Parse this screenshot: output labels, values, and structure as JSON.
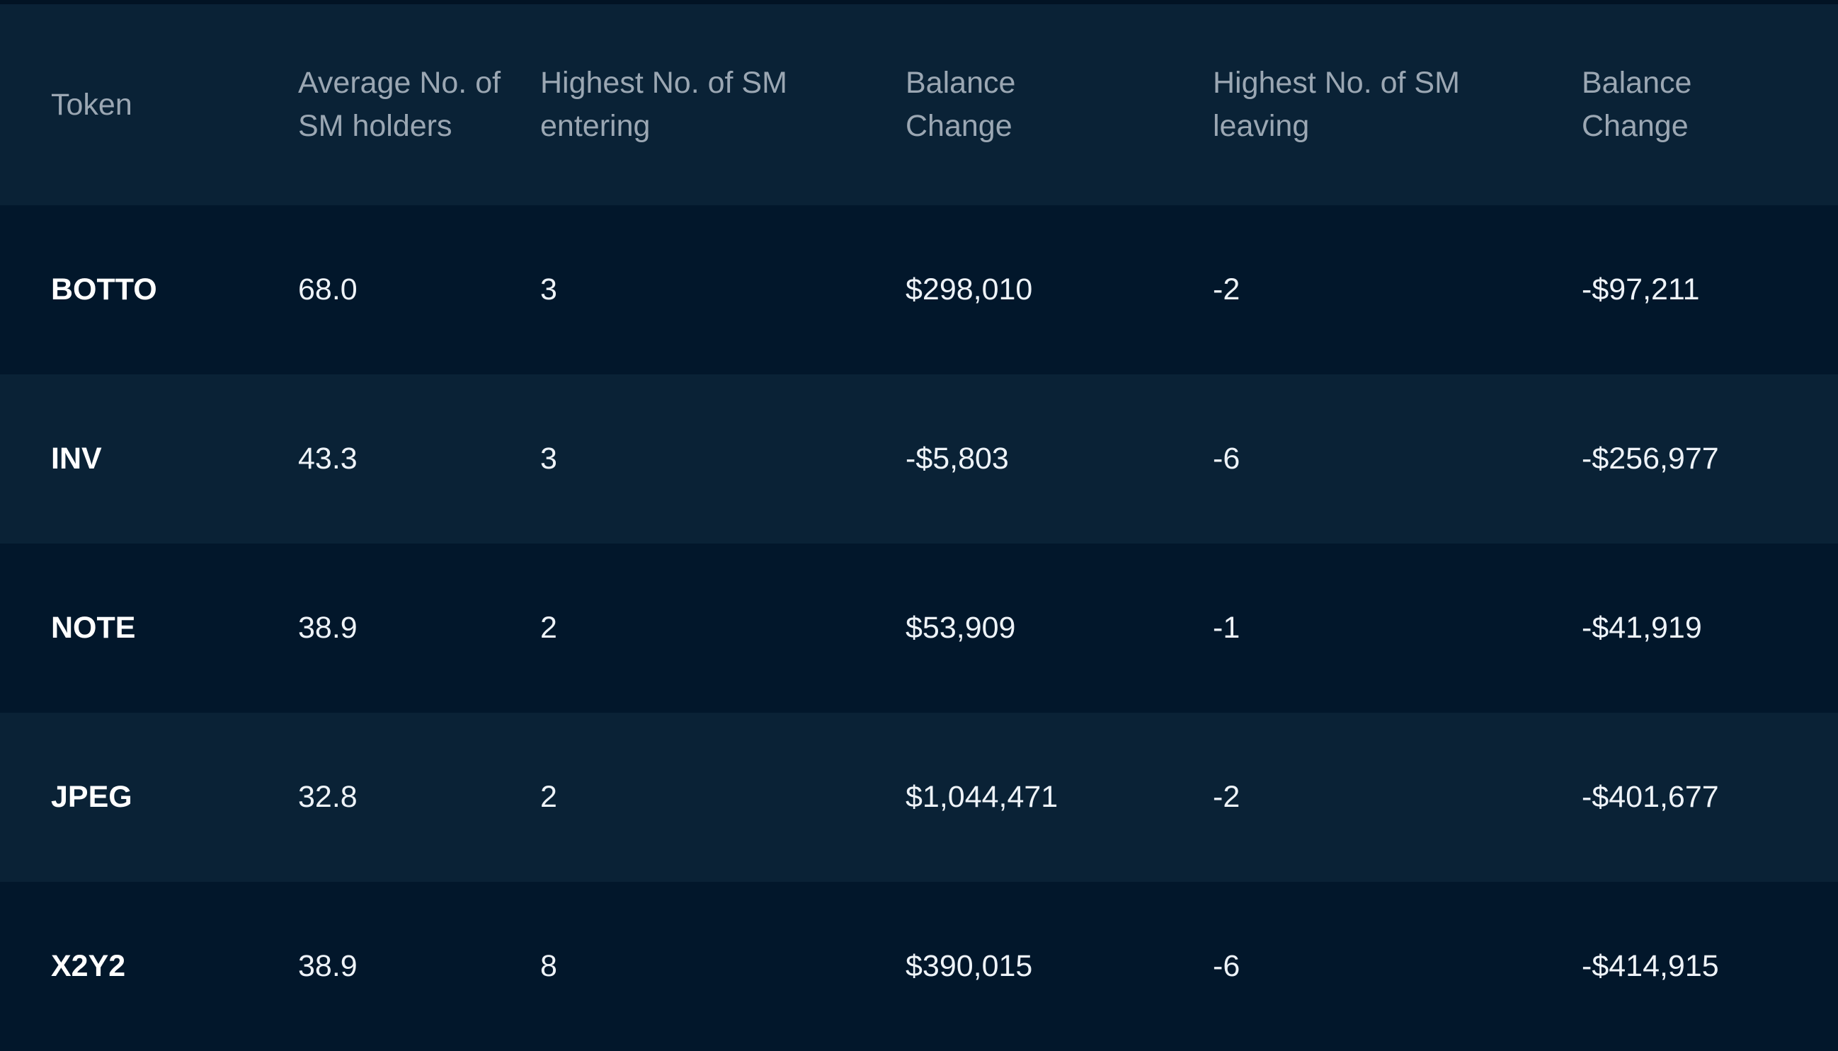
{
  "chart_data": {
    "type": "table",
    "columns": [
      "Token",
      "Average No. of SM holders",
      "Highest No. of SM entering",
      "Balance Change",
      "Highest No. of SM leaving",
      "Balance Change"
    ],
    "rows": [
      [
        "BOTTO",
        "68.0",
        "3",
        "$298,010",
        "-2",
        "-$97,211"
      ],
      [
        "INV",
        "43.3",
        "3",
        "-$5,803",
        "-6",
        "-$256,977"
      ],
      [
        "NOTE",
        "38.9",
        "2",
        "$53,909",
        "-1",
        "-$41,919"
      ],
      [
        "JPEG",
        "32.8",
        "2",
        "$1,044,471",
        "-2",
        "-$401,677"
      ],
      [
        "X2Y2",
        "38.9",
        "8",
        "$390,015",
        "-6",
        "-$414,915"
      ]
    ]
  },
  "colors": {
    "page_background": "#02172b",
    "header_background": "#0a2236",
    "row_alt_background": "#0a2236",
    "header_text": "#9ba7b3",
    "cell_text": "#eef3f8"
  }
}
